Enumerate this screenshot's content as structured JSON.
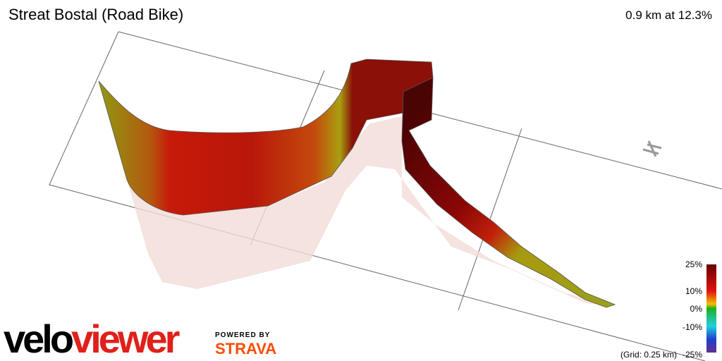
{
  "header": {
    "title": "Streat Bostal (Road Bike)",
    "stats": "0.9 km at 12.3%"
  },
  "legend": {
    "labels": [
      "25%",
      "10%",
      "0%",
      "-10%",
      "-25%"
    ],
    "grid_note": "(Grid: 0.25 km)"
  },
  "branding": {
    "logo_start": "velo",
    "logo_end": "viewer",
    "powered": "POWERED BY",
    "strava": "STRAVA"
  }
}
